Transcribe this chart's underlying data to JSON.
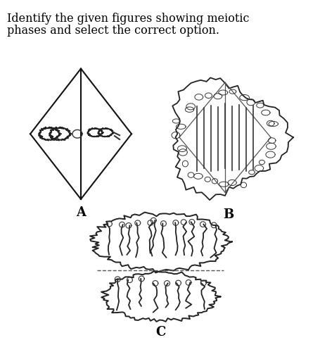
{
  "title_line1": "Identify the given figures showing meiotic",
  "title_line2": "phases and select the correct option.",
  "label_A": "A",
  "label_B": "B",
  "label_C": "C",
  "bg_color": "#ffffff",
  "text_color": "#000000",
  "title_fontsize": 11.5,
  "label_fontsize": 13
}
